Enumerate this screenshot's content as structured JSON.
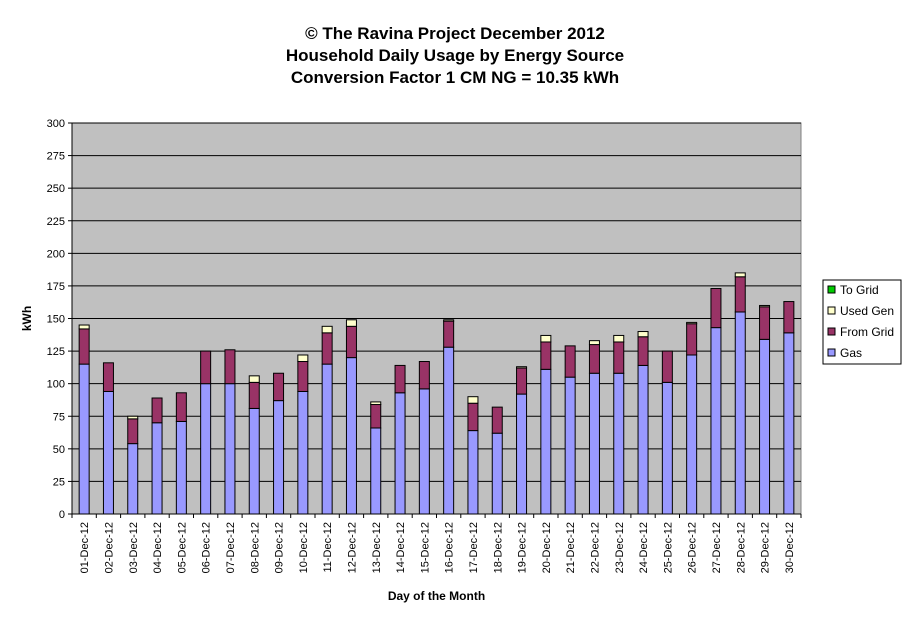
{
  "chart_data": {
    "type": "bar",
    "stacked": true,
    "title": [
      "© The Ravina Project December 2012",
      "Household Daily Usage by Energy Source",
      "Conversion Factor 1 CM NG = 10.35 kWh"
    ],
    "xlabel": "Day of the Month",
    "ylabel": "kWh",
    "ylim": [
      0,
      300
    ],
    "yticks": [
      0,
      25,
      50,
      75,
      100,
      125,
      150,
      175,
      200,
      225,
      250,
      275,
      300
    ],
    "grid": true,
    "legend_position": "right",
    "categories": [
      "01-Dec-12",
      "02-Dec-12",
      "03-Dec-12",
      "04-Dec-12",
      "05-Dec-12",
      "06-Dec-12",
      "07-Dec-12",
      "08-Dec-12",
      "09-Dec-12",
      "10-Dec-12",
      "11-Dec-12",
      "12-Dec-12",
      "13-Dec-12",
      "14-Dec-12",
      "15-Dec-12",
      "16-Dec-12",
      "17-Dec-12",
      "18-Dec-12",
      "19-Dec-12",
      "20-Dec-12",
      "21-Dec-12",
      "22-Dec-12",
      "23-Dec-12",
      "24-Dec-12",
      "25-Dec-12",
      "26-Dec-12",
      "27-Dec-12",
      "28-Dec-12",
      "29-Dec-12",
      "30-Dec-12"
    ],
    "series": [
      {
        "name": "Gas",
        "color": "#9999ff",
        "values": [
          115,
          94,
          54,
          70,
          71,
          100,
          100,
          81,
          87,
          94,
          115,
          120,
          66,
          93,
          96,
          128,
          64,
          62,
          92,
          111,
          105,
          108,
          108,
          114,
          101,
          122,
          143,
          155,
          134,
          139
        ]
      },
      {
        "name": "From Grid",
        "color": "#993366",
        "values": [
          27,
          22,
          19,
          19,
          22,
          25,
          26,
          20,
          21,
          23,
          24,
          24,
          18,
          21,
          21,
          20,
          21,
          20,
          20,
          21,
          24,
          22,
          24,
          22,
          24,
          24,
          30,
          27,
          25,
          24
        ]
      },
      {
        "name": "Used Gen",
        "color": "#ffffcc",
        "values": [
          3,
          0,
          2,
          0,
          0,
          0,
          0,
          5,
          0,
          5,
          5,
          5,
          2,
          0,
          0,
          1,
          5,
          0,
          1,
          5,
          0,
          3,
          5,
          4,
          0,
          1,
          0,
          3,
          1,
          0
        ]
      },
      {
        "name": "To Grid",
        "color": "#00cc00",
        "values": [
          0,
          0,
          0,
          0,
          0,
          0,
          0,
          0,
          0,
          0,
          0,
          0,
          0,
          0,
          0,
          0,
          0,
          0,
          0,
          0,
          0,
          0,
          0,
          0,
          0,
          0,
          0,
          0,
          0,
          0
        ]
      }
    ],
    "legend_order": [
      "To Grid",
      "Used Gen",
      "From Grid",
      "Gas"
    ],
    "plot_background": "#c0c0c0"
  }
}
